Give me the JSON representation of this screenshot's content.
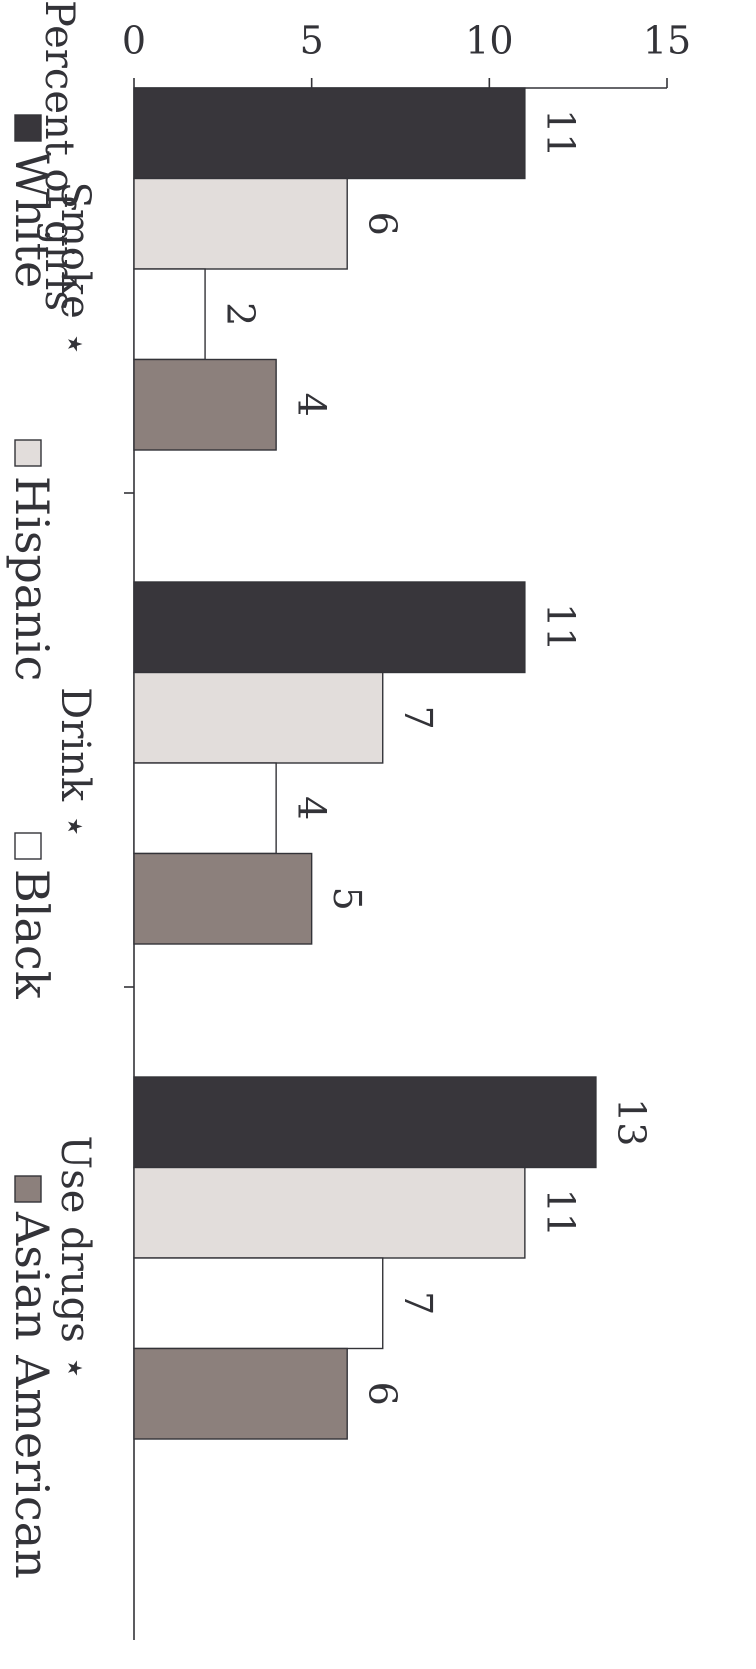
{
  "chart_data": {
    "type": "bar",
    "orientation": "vertical (figure rotated 90° clockwise)",
    "ylabel": "Percent of girls",
    "ylim": [
      0,
      15
    ],
    "yticks": [
      0,
      5,
      10,
      15
    ],
    "categories": [
      "Smoke ⋆",
      "Drink ⋆",
      "Use drugs ⋆"
    ],
    "series": [
      {
        "name": "White",
        "values": [
          11,
          11,
          13
        ],
        "color": "#38363b"
      },
      {
        "name": "Hispanic",
        "values": [
          6,
          7,
          11
        ],
        "color": "#e2dddb"
      },
      {
        "name": "Black",
        "values": [
          2,
          4,
          7
        ],
        "color": "#ffffff"
      },
      {
        "name": "Asian American",
        "values": [
          4,
          5,
          6
        ],
        "color": "#8c807c"
      }
    ],
    "legend_position": "top",
    "grid": false
  }
}
